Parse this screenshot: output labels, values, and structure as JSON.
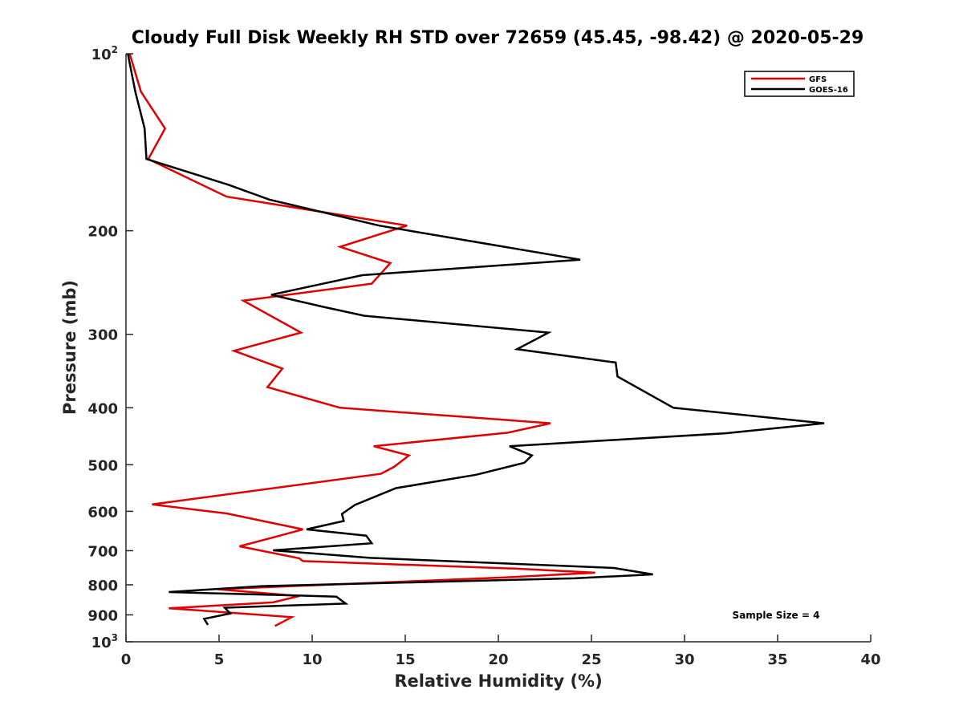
{
  "chart_data": {
    "type": "line",
    "title": "Cloudy Full Disk Weekly RH STD over 72659 (45.45, -98.42) @ 2020-05-29",
    "xlabel": "Relative Humidity (%)",
    "ylabel": "Pressure (mb)",
    "xlim": [
      0,
      40
    ],
    "ylim": [
      100,
      1000
    ],
    "y_scale": "log",
    "y_reversed": true,
    "grid": false,
    "legend_position": "top-right",
    "x_ticks": [
      "0",
      "5",
      "10",
      "15",
      "20",
      "25",
      "30",
      "35",
      "40"
    ],
    "y_ticks": [
      {
        "value": 100,
        "base": "10",
        "exp": "2"
      },
      {
        "value": 200,
        "label": "200"
      },
      {
        "value": 300,
        "label": "300"
      },
      {
        "value": 400,
        "label": "400"
      },
      {
        "value": 500,
        "label": "500"
      },
      {
        "value": 600,
        "label": "600"
      },
      {
        "value": 700,
        "label": "700"
      },
      {
        "value": 800,
        "label": "800"
      },
      {
        "value": 900,
        "label": "900"
      },
      {
        "value": 1000,
        "base": "10",
        "exp": "3"
      }
    ],
    "series": [
      {
        "name": "GFS",
        "color": "#e00000",
        "points": [
          [
            0.2,
            100
          ],
          [
            0.8,
            116
          ],
          [
            2.1,
            134
          ],
          [
            1.2,
            151
          ],
          [
            5.4,
            175
          ],
          [
            15.1,
            196
          ],
          [
            11.5,
            213
          ],
          [
            14.2,
            227
          ],
          [
            13.2,
            246
          ],
          [
            6.3,
            263
          ],
          [
            9.4,
            298
          ],
          [
            5.8,
            320
          ],
          [
            8.4,
            343
          ],
          [
            7.6,
            369
          ],
          [
            11.5,
            400
          ],
          [
            22.8,
            425
          ],
          [
            20.5,
            441
          ],
          [
            13.3,
            465
          ],
          [
            15.2,
            482
          ],
          [
            14.4,
            504
          ],
          [
            13.7,
            518
          ],
          [
            1.4,
            584
          ],
          [
            5.4,
            605
          ],
          [
            9.5,
            644
          ],
          [
            7.8,
            666
          ],
          [
            6.1,
            688
          ],
          [
            9.3,
            721
          ],
          [
            9.5,
            729
          ],
          [
            20.9,
            751
          ],
          [
            25.2,
            763
          ],
          [
            20.4,
            777
          ],
          [
            4.9,
            814
          ],
          [
            9.3,
            836
          ],
          [
            7.9,
            857
          ],
          [
            2.3,
            877
          ],
          [
            8.9,
            908
          ],
          [
            8.0,
            940
          ]
        ]
      },
      {
        "name": "GOES-16",
        "color": "#000000",
        "points": [
          [
            0.1,
            100
          ],
          [
            0.5,
            116
          ],
          [
            1.0,
            134
          ],
          [
            1.1,
            151
          ],
          [
            5.5,
            167
          ],
          [
            7.7,
            177
          ],
          [
            13.6,
            196
          ],
          [
            24.4,
            224
          ],
          [
            12.7,
            238
          ],
          [
            7.8,
            257
          ],
          [
            10.5,
            269
          ],
          [
            12.8,
            279
          ],
          [
            22.7,
            298
          ],
          [
            21.0,
            318
          ],
          [
            26.3,
            335
          ],
          [
            26.4,
            354
          ],
          [
            29.4,
            400
          ],
          [
            37.5,
            425
          ],
          [
            32.2,
            442
          ],
          [
            20.6,
            465
          ],
          [
            21.8,
            482
          ],
          [
            21.4,
            496
          ],
          [
            18.8,
            520
          ],
          [
            14.5,
            548
          ],
          [
            12.3,
            585
          ],
          [
            11.6,
            606
          ],
          [
            11.7,
            623
          ],
          [
            9.7,
            644
          ],
          [
            12.9,
            660
          ],
          [
            13.2,
            680
          ],
          [
            7.9,
            699
          ],
          [
            13.1,
            720
          ],
          [
            26.2,
            749
          ],
          [
            28.3,
            768
          ],
          [
            24.1,
            780
          ],
          [
            7.3,
            804
          ],
          [
            2.3,
            823
          ],
          [
            11.3,
            838
          ],
          [
            11.8,
            861
          ],
          [
            5.3,
            875
          ],
          [
            5.6,
            895
          ],
          [
            4.2,
            914
          ],
          [
            4.4,
            936
          ]
        ]
      }
    ],
    "annotation": "Sample Size = 4"
  }
}
